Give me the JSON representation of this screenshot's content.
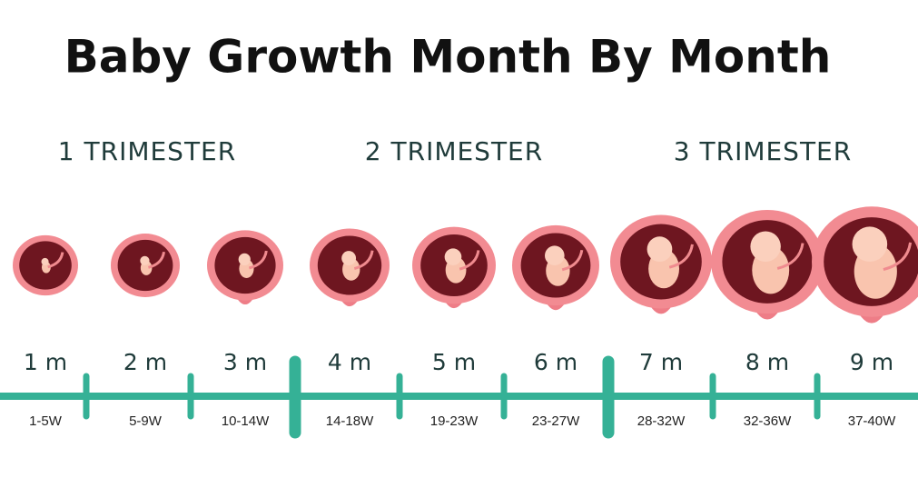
{
  "title": "Baby Growth Month By Month",
  "trimesters": [
    "1 TRIMESTER",
    "2 TRIMESTER",
    "3 TRIMESTER"
  ],
  "months": [
    {
      "label": "1 m",
      "weeks": "1-5W"
    },
    {
      "label": "2 m",
      "weeks": "5-9W"
    },
    {
      "label": "3 m",
      "weeks": "10-14W"
    },
    {
      "label": "4 m",
      "weeks": "14-18W"
    },
    {
      "label": "5 m",
      "weeks": "19-23W"
    },
    {
      "label": "6 m",
      "weeks": "23-27W"
    },
    {
      "label": "7 m",
      "weeks": "28-32W"
    },
    {
      "label": "8 m",
      "weeks": "32-36W"
    },
    {
      "label": "9 m",
      "weeks": "37-40W"
    }
  ]
}
